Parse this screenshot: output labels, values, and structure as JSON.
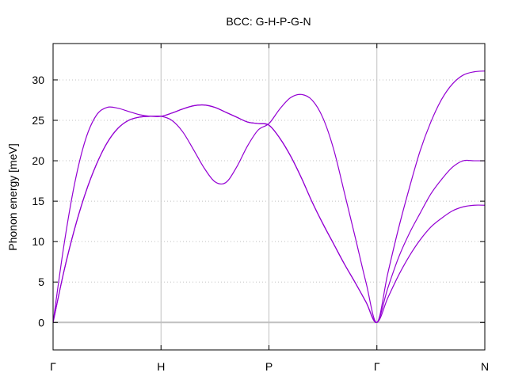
{
  "chart_data": {
    "type": "line",
    "title": "BCC: G-H-P-G-N",
    "xlabel": "",
    "ylabel": "Phonon energy [meV]",
    "ylim": [
      -3.4,
      34.5
    ],
    "yticks": [
      0,
      5,
      10,
      15,
      20,
      25,
      30
    ],
    "x_path_points": [
      {
        "label": "Γ",
        "x": 0.0
      },
      {
        "label": "H",
        "x": 1.0
      },
      {
        "label": "P",
        "x": 2.0
      },
      {
        "label": "Γ",
        "x": 3.0
      },
      {
        "label": "N",
        "x": 4.0
      }
    ],
    "xlim": [
      0.0,
      4.0
    ],
    "grid": {
      "vertical_at_path_points": true,
      "horizontal_dotted": true
    },
    "colors": {
      "band": "#9400d3",
      "grid": "#c0c0c0",
      "zero_line": "#c0c0c0"
    },
    "series": [
      {
        "x": [
          0,
          0.1,
          0.2,
          0.3,
          0.4,
          0.5,
          0.6,
          0.7,
          0.8,
          0.9,
          1.0,
          1.1,
          1.2,
          1.3,
          1.4,
          1.5,
          1.6,
          1.7,
          1.8,
          1.9,
          2.0,
          2.1,
          2.2,
          2.3,
          2.4,
          2.5,
          2.6,
          2.7,
          2.8,
          2.9,
          3.0,
          3.1,
          3.2,
          3.3,
          3.4,
          3.5,
          3.6,
          3.7,
          3.8,
          3.9,
          4.0
        ],
        "values": [
          0.0,
          6.3,
          11.6,
          16.0,
          19.5,
          22.2,
          24.0,
          25.0,
          25.4,
          25.5,
          25.5,
          25.9,
          26.4,
          26.8,
          26.9,
          26.6,
          26.0,
          25.4,
          24.8,
          24.6,
          24.4,
          22.8,
          20.6,
          17.9,
          14.9,
          12.2,
          9.7,
          7.2,
          4.9,
          2.5,
          0.0,
          4.2,
          8.0,
          11.0,
          13.5,
          15.9,
          17.7,
          19.2,
          20.0,
          20.0,
          20.0
        ]
      },
      {
        "x": [
          0,
          0.1,
          0.2,
          0.3,
          0.4,
          0.5,
          0.6,
          0.7,
          0.8,
          0.9,
          1.0,
          1.1,
          1.2,
          1.3,
          1.4,
          1.5,
          1.6,
          1.7,
          1.8,
          1.9,
          2.0,
          2.1,
          2.2,
          2.3,
          2.4,
          2.5,
          2.6,
          2.7,
          2.8,
          2.9,
          3.0,
          3.1,
          3.2,
          3.3,
          3.4,
          3.5,
          3.6,
          3.7,
          3.8,
          3.9,
          4.0
        ],
        "values": [
          0.0,
          9.5,
          17.2,
          22.6,
          25.6,
          26.6,
          26.5,
          26.1,
          25.7,
          25.5,
          25.5,
          25.0,
          23.6,
          21.4,
          19.1,
          17.4,
          17.3,
          19.2,
          21.8,
          23.8,
          24.6,
          26.4,
          27.8,
          28.2,
          27.5,
          25.3,
          21.4,
          16.0,
          10.5,
          4.9,
          0.0,
          6.0,
          11.6,
          16.6,
          21.2,
          24.8,
          27.6,
          29.5,
          30.6,
          31.0,
          31.1
        ]
      },
      {
        "x": [
          0,
          0.1,
          0.2,
          0.3,
          0.4,
          0.5,
          0.6,
          0.7,
          0.8,
          0.9,
          1.0,
          1.1,
          1.2,
          1.3,
          1.4,
          1.5,
          1.6,
          1.7,
          1.8,
          1.9,
          2.0,
          2.1,
          2.2,
          2.3,
          2.4,
          2.5,
          2.6,
          2.7,
          2.8,
          2.9,
          3.0,
          3.1,
          3.2,
          3.3,
          3.4,
          3.5,
          3.6,
          3.7,
          3.8,
          3.9,
          4.0
        ],
        "values": [
          0.0,
          6.3,
          11.6,
          16.0,
          19.5,
          22.2,
          24.0,
          25.0,
          25.4,
          25.5,
          25.5,
          25.9,
          26.4,
          26.8,
          26.9,
          26.6,
          26.0,
          25.4,
          24.8,
          24.6,
          24.4,
          22.8,
          20.6,
          17.9,
          14.9,
          12.2,
          9.7,
          7.2,
          4.9,
          2.5,
          0.0,
          3.0,
          5.8,
          8.2,
          10.2,
          11.8,
          12.9,
          13.8,
          14.3,
          14.5,
          14.5
        ]
      }
    ]
  }
}
